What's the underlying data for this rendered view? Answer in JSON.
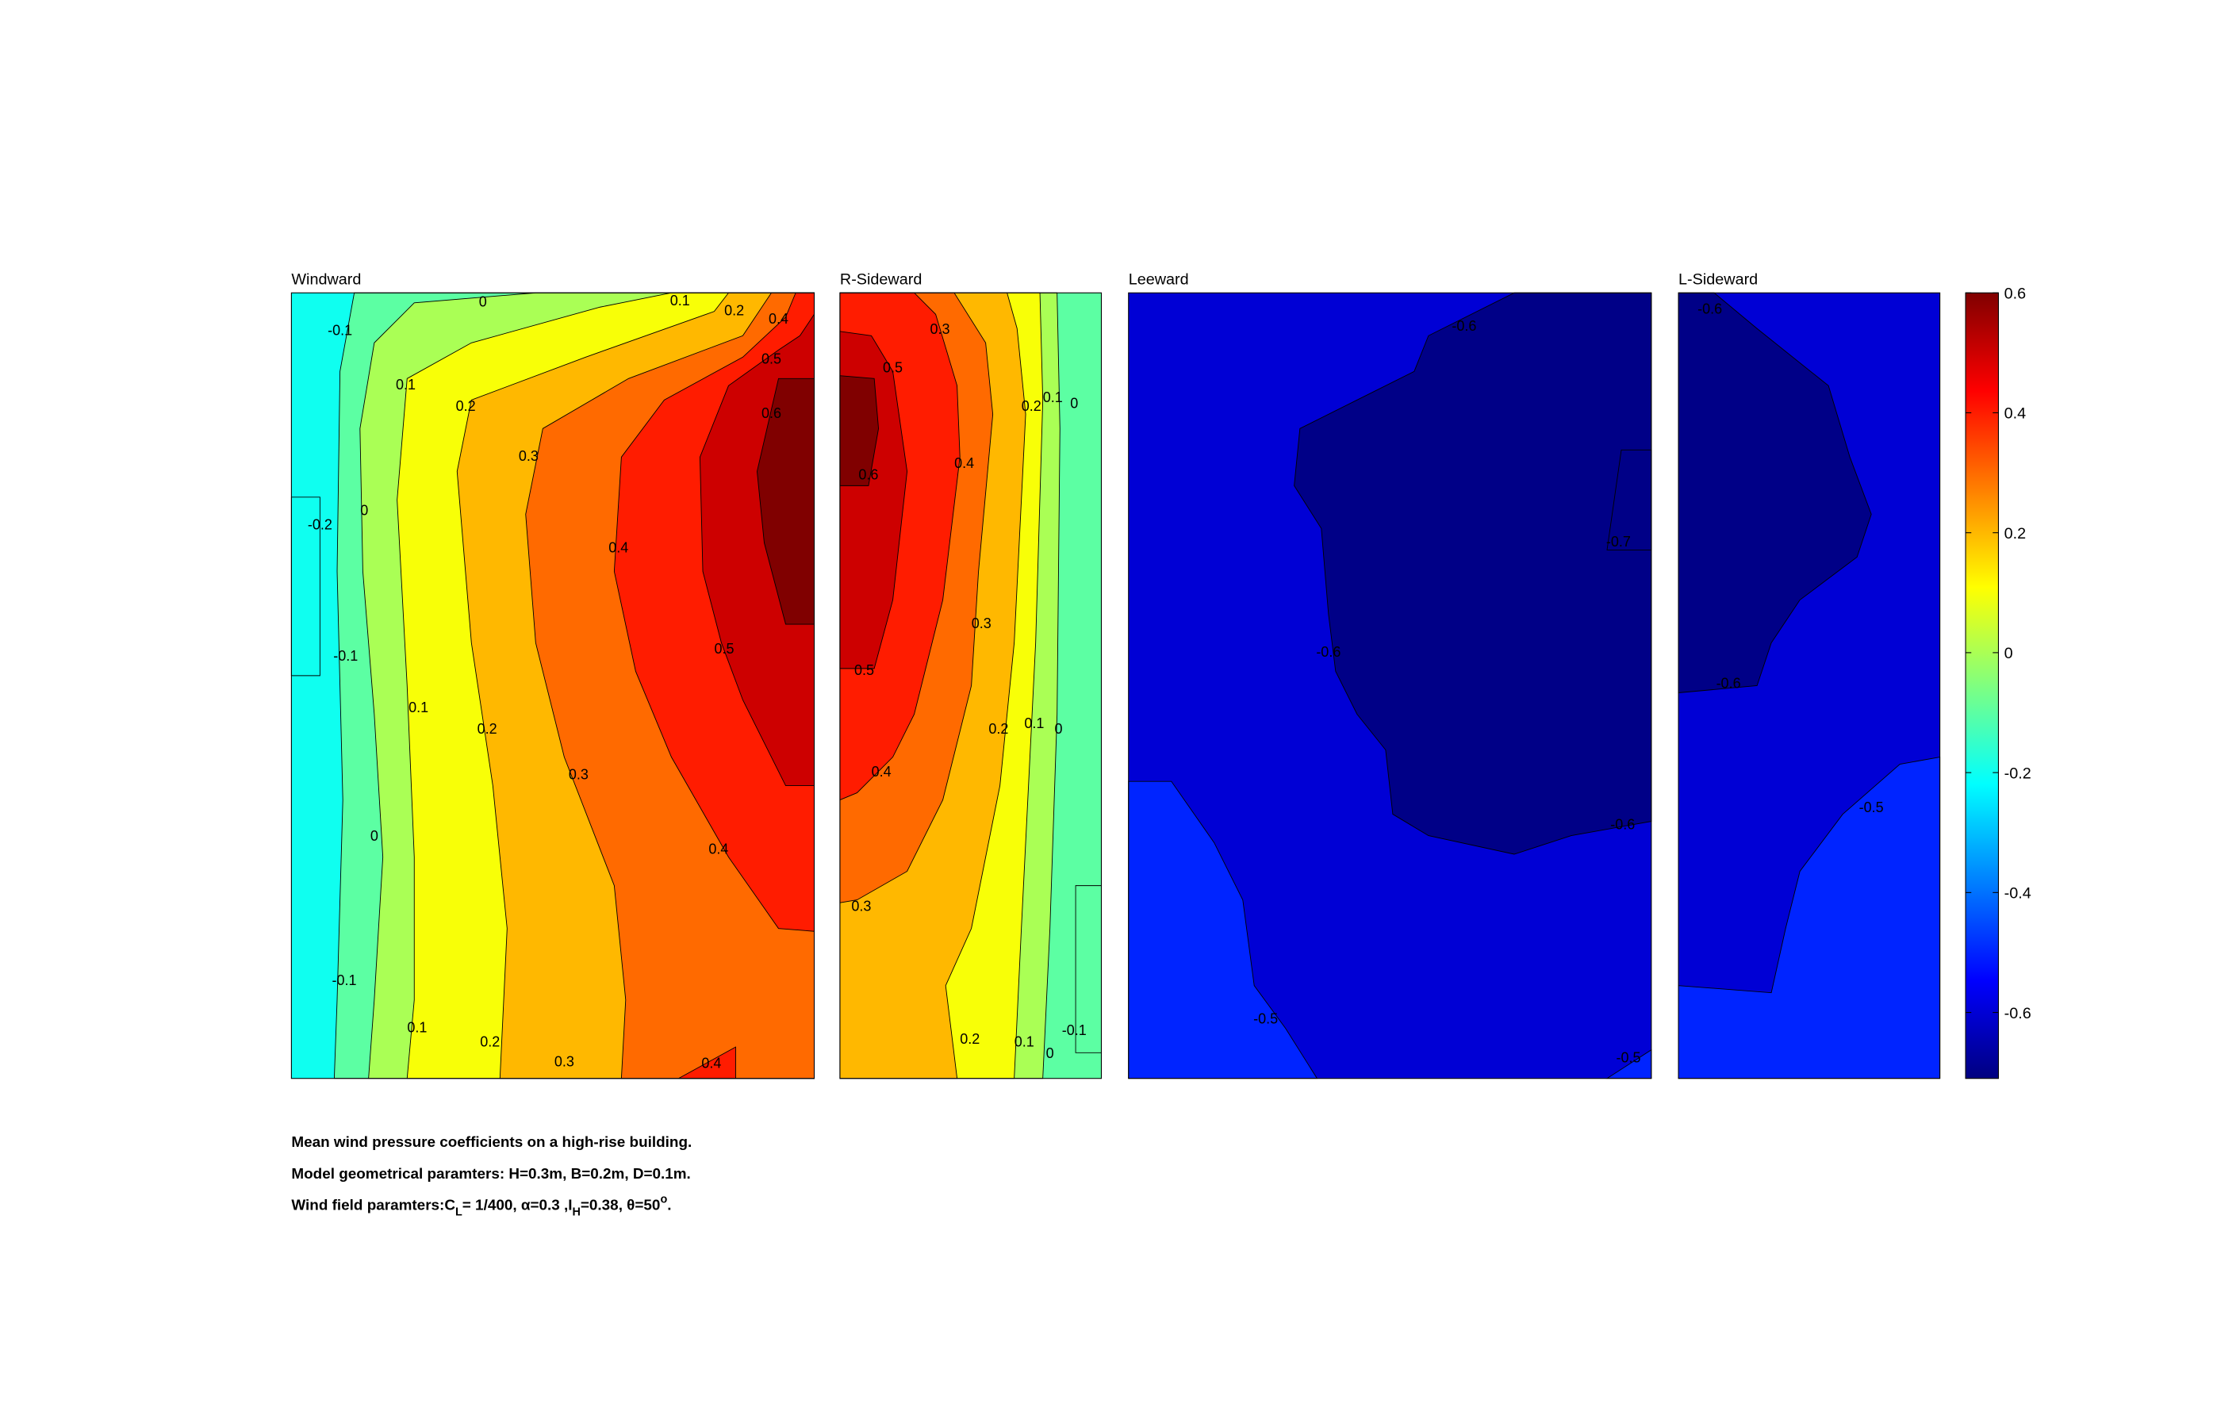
{
  "chart_data": {
    "type": "contour",
    "colormap": "jet",
    "panels": [
      {
        "title": "Windward",
        "levels": [
          -0.2,
          -0.1,
          0,
          0.1,
          0.2,
          0.3,
          0.4,
          0.5,
          0.6
        ],
        "contour_labels": [
          -0.1,
          0,
          0.1,
          0.2,
          0.4,
          0.5,
          0.6,
          0.1,
          0.2,
          0.3,
          -0.2,
          0,
          0.4,
          -0.1,
          0.5,
          0.1,
          0.2,
          0.3,
          0,
          0.4,
          -0.1,
          0.1,
          0.2,
          0.3,
          0.4
        ]
      },
      {
        "title": "R-Sideward",
        "levels": [
          -0.1,
          0,
          0.1,
          0.2,
          0.3,
          0.4,
          0.5,
          0.6
        ],
        "contour_labels": [
          0.3,
          0.5,
          0.2,
          0.1,
          0,
          0.6,
          0.4,
          0.3,
          0.5,
          0.2,
          0.1,
          0,
          0.4,
          0.3,
          0.2,
          0.1,
          0,
          -0.1
        ]
      },
      {
        "title": "Leeward",
        "levels": [
          -0.7,
          -0.6,
          -0.5
        ],
        "contour_labels": [
          -0.6,
          -0.7,
          -0.6,
          -0.6,
          -0.5,
          -0.5
        ]
      },
      {
        "title": "L-Sideward",
        "levels": [
          -0.7,
          -0.6,
          -0.5
        ],
        "contour_labels": [
          -0.6,
          -0.6,
          -0.5
        ]
      }
    ],
    "colorbar": {
      "lim": [
        -0.71,
        0.6
      ],
      "ticks": [
        0.6,
        0.4,
        0.2,
        0,
        -0.2,
        -0.4,
        -0.6
      ]
    },
    "caption": [
      "Mean wind pressure coefficients on a high-rise building.",
      "Model geometrical paramters: H=0.3m, B=0.2m, D=0.1m.",
      [
        "Wind field paramters:C",
        "L",
        "= 1/400, α=0.3 ,I",
        "H",
        "=0.38, θ=50",
        "o",
        "."
      ]
    ]
  }
}
